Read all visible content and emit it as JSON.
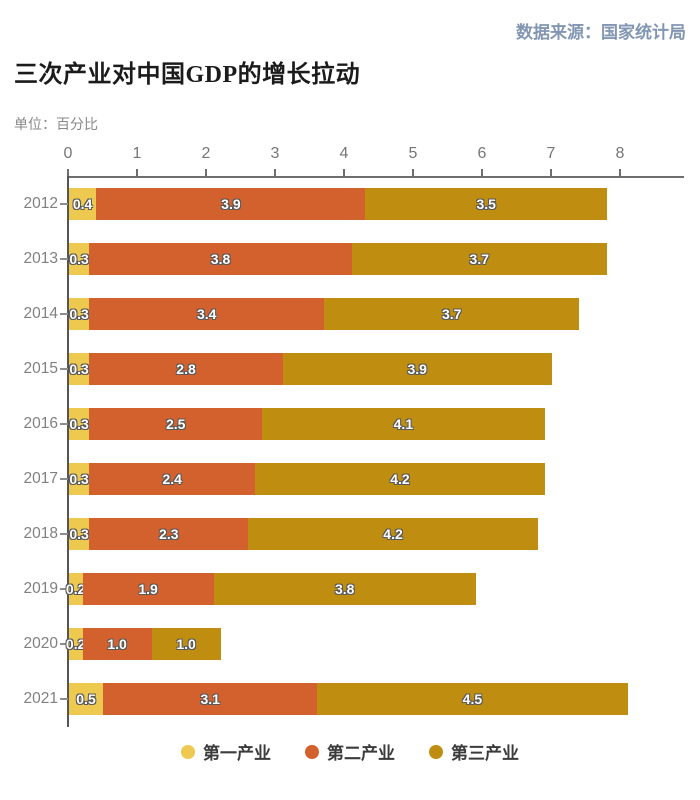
{
  "header": {
    "source": "数据来源：国家统计局",
    "title": "三次产业对中国GDP的增长拉动",
    "unit": "单位：百分比"
  },
  "colors": {
    "series_primary": "#EDC94F",
    "series_secondary": "#D2612E",
    "series_tertiary": "#BF8E10",
    "source_text": "#8296B3",
    "axis_line": "#6E6E6E",
    "tick_label": "#767676",
    "year_label": "#808080"
  },
  "chart_data": {
    "type": "bar",
    "orientation": "horizontal",
    "stacked": true,
    "title": "三次产业对中国GDP的增长拉动",
    "unit_label": "单位：百分比",
    "source_label": "数据来源：国家统计局",
    "categories": [
      "2012",
      "2013",
      "2014",
      "2015",
      "2016",
      "2017",
      "2018",
      "2019",
      "2020",
      "2021"
    ],
    "series": [
      {
        "name": "第一产业",
        "color": "#EDC94F",
        "values": [
          0.4,
          0.3,
          0.3,
          0.3,
          0.3,
          0.3,
          0.3,
          0.2,
          0.2,
          0.5
        ]
      },
      {
        "name": "第二产业",
        "color": "#D2612E",
        "values": [
          3.9,
          3.8,
          3.4,
          2.8,
          2.5,
          2.4,
          2.3,
          1.9,
          1.0,
          3.1
        ]
      },
      {
        "name": "第三产业",
        "color": "#BF8E10",
        "values": [
          3.5,
          3.7,
          3.7,
          3.9,
          4.1,
          4.2,
          4.2,
          3.8,
          1.0,
          4.5
        ]
      }
    ],
    "x_ticks": [
      "0",
      "1",
      "2",
      "3",
      "4",
      "5",
      "6",
      "7",
      "8"
    ],
    "xlim": [
      0,
      8
    ],
    "grid": false,
    "legend_position": "bottom",
    "legend": [
      "第一产业",
      "第二产业",
      "第三产业"
    ]
  }
}
